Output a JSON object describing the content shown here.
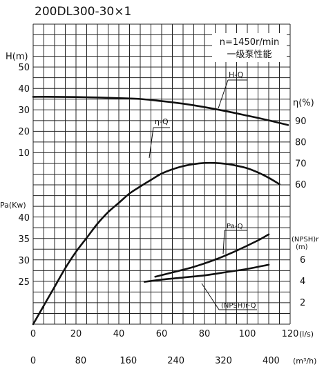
{
  "chart_data": {
    "type": "line",
    "title": "200DL300-30×1",
    "info_box": {
      "line1": "n=1450r/min",
      "line2": "一级泵性能"
    },
    "axes": {
      "x_ls": {
        "label": "(l/s)",
        "range": [
          0,
          120
        ],
        "ticks": [
          0,
          20,
          40,
          60,
          80,
          100,
          120
        ]
      },
      "x_m3h": {
        "label": "(m³/h)",
        "ticks": [
          0,
          80,
          160,
          240,
          320,
          400
        ]
      },
      "head": {
        "label": "H(m)",
        "range": [
          0,
          50
        ],
        "ticks": [
          10,
          20,
          30,
          40,
          50
        ]
      },
      "efficiency": {
        "label": "η(%)",
        "range": [
          50,
          90
        ],
        "ticks": [
          60,
          70,
          80,
          90
        ]
      },
      "power": {
        "label": "Pa(Kw)",
        "range": [
          20,
          40
        ],
        "ticks": [
          25,
          30,
          35,
          40
        ]
      },
      "npsh": {
        "label1": "(NPSH)r",
        "label2": "(m)",
        "range": [
          0,
          8
        ],
        "ticks": [
          2,
          4,
          6
        ]
      }
    },
    "series": [
      {
        "name": "H-Q",
        "axis": "head",
        "x": [
          0,
          10,
          20,
          30,
          40,
          50,
          60,
          70,
          80,
          90,
          100,
          110,
          119
        ],
        "y": [
          36,
          36,
          35.9,
          35.7,
          35.4,
          35,
          34,
          32.8,
          31.2,
          29.3,
          27.2,
          25,
          22.8
        ]
      },
      {
        "name": "η-Q",
        "axis": "efficiency",
        "x": [
          0,
          5,
          10,
          15,
          20,
          25,
          30,
          35,
          40,
          45,
          50,
          55,
          60,
          65,
          70,
          75,
          80,
          85,
          90,
          95,
          100,
          105,
          110,
          115
        ],
        "y": [
          0,
          8,
          16,
          24,
          31,
          37,
          43,
          48,
          52,
          56,
          59,
          62,
          65,
          67,
          68.5,
          69.5,
          70,
          70,
          69.6,
          68.7,
          67.5,
          65.5,
          63,
          60
        ]
      },
      {
        "name": "Pa-Q",
        "axis": "power",
        "x": [
          57,
          65,
          75,
          85,
          95,
          105,
          110
        ],
        "y": [
          26.1,
          27.1,
          28.4,
          30.1,
          32.2,
          34.6,
          36
        ]
      },
      {
        "name": "(NPSH)r-Q",
        "axis": "npsh",
        "x": [
          52,
          60,
          70,
          80,
          90,
          100,
          110
        ],
        "y": [
          3.9,
          4.1,
          4.3,
          4.5,
          4.8,
          5.1,
          5.5
        ]
      }
    ]
  }
}
